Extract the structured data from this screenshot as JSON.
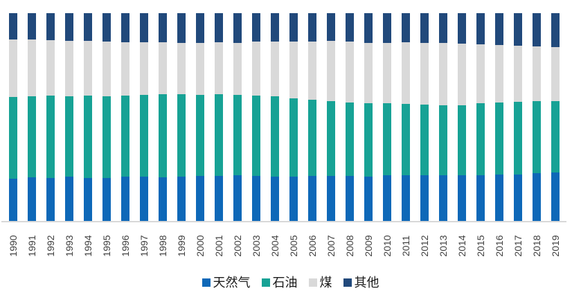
{
  "chart_data": {
    "type": "bar",
    "stacked": true,
    "percent_stacked": true,
    "title": "",
    "xlabel": "",
    "ylabel": "",
    "ylim": [
      0,
      100
    ],
    "grid": false,
    "legend_position": "bottom",
    "axis_line_color": "#d8d8d8",
    "tick_label_color": "#3f3f3f",
    "categories": [
      "1990",
      "1991",
      "1992",
      "1993",
      "1994",
      "1995",
      "1996",
      "1997",
      "1998",
      "1999",
      "2000",
      "2001",
      "2002",
      "2003",
      "2004",
      "2005",
      "2006",
      "2007",
      "2008",
      "2009",
      "2010",
      "2011",
      "2012",
      "2013",
      "2014",
      "2015",
      "2016",
      "2017",
      "2018",
      "2019"
    ],
    "series": [
      {
        "key": "gas",
        "name": "天然气",
        "color": "#0E68B8",
        "values": [
          20.2,
          21.0,
          20.6,
          21.2,
          20.6,
          20.8,
          21.4,
          21.2,
          21.0,
          21.4,
          21.7,
          21.7,
          21.9,
          21.7,
          21.4,
          21.4,
          21.7,
          21.7,
          21.7,
          21.4,
          22.1,
          21.9,
          22.1,
          21.9,
          21.9,
          22.1,
          22.3,
          22.3,
          23.0,
          23.2
        ]
      },
      {
        "key": "oil",
        "name": "石油",
        "color": "#17A295",
        "values": [
          39.4,
          38.9,
          39.7,
          38.8,
          39.7,
          39.2,
          38.8,
          39.4,
          39.9,
          39.7,
          39.0,
          39.3,
          38.8,
          38.6,
          38.5,
          37.7,
          36.6,
          35.9,
          35.4,
          35.2,
          34.6,
          34.4,
          33.9,
          33.9,
          33.9,
          34.6,
          34.8,
          35.1,
          34.8,
          34.5
        ]
      },
      {
        "key": "coal",
        "name": "煤",
        "color": "#D9D9D9",
        "values": [
          27.6,
          27.3,
          26.9,
          26.8,
          26.5,
          26.2,
          25.8,
          25.3,
          25.1,
          24.7,
          25.1,
          25.0,
          25.1,
          26.0,
          26.3,
          27.3,
          28.2,
          29.1,
          29.1,
          29.1,
          29.1,
          29.7,
          29.8,
          29.8,
          29.6,
          28.2,
          27.6,
          27.0,
          26.2,
          26.0
        ]
      },
      {
        "key": "other",
        "name": "其他",
        "color": "#21497B",
        "values": [
          12.8,
          12.8,
          12.9,
          13.2,
          13.2,
          13.8,
          14.0,
          14.0,
          14.0,
          14.2,
          14.2,
          14.0,
          14.2,
          13.8,
          13.8,
          13.6,
          13.6,
          13.3,
          13.8,
          14.2,
          14.2,
          14.0,
          14.2,
          14.4,
          14.7,
          15.1,
          15.3,
          15.6,
          16.0,
          16.2
        ]
      }
    ]
  }
}
